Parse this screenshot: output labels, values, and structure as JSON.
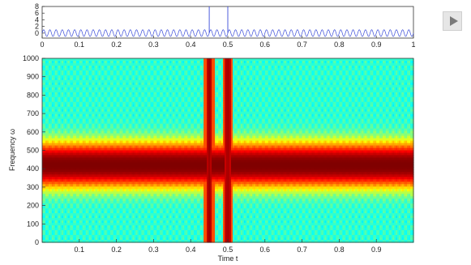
{
  "controls": {
    "play_icon": "play-icon"
  },
  "chart_data": [
    {
      "type": "line",
      "panel": "signal",
      "title": "",
      "xlabel": "",
      "ylabel": "",
      "xlim": [
        0,
        1
      ],
      "ylim": [
        -1.5,
        8
      ],
      "yticks": [
        0,
        2,
        4,
        6,
        8
      ],
      "ytick_labels": [
        "0",
        "2",
        "4",
        "6",
        "8"
      ],
      "xticks": [
        0,
        0.1,
        0.2,
        0.3,
        0.4,
        0.5,
        0.6,
        0.7,
        0.8,
        0.9,
        1
      ],
      "xtick_labels": [
        "0",
        "0.1",
        "0.2",
        "0.3",
        "0.4",
        "0.5",
        "0.6",
        "0.7",
        "0.8",
        "0.9",
        "1"
      ],
      "line_color": "#3a4bd8",
      "baseline_frequency_cycles": 60,
      "baseline_amplitude": 1,
      "spikes": [
        {
          "t": 0.45,
          "value": 8
        },
        {
          "t": 0.5,
          "value": 8
        }
      ]
    },
    {
      "type": "heatmap",
      "panel": "spectrogram",
      "title": "",
      "xlabel": "Time t",
      "ylabel": "Frequency ω",
      "xlim": [
        0,
        1
      ],
      "ylim": [
        0,
        1000
      ],
      "xticks": [
        0.1,
        0.2,
        0.3,
        0.4,
        0.5,
        0.6,
        0.7,
        0.8,
        0.9
      ],
      "xtick_labels": [
        "0.1",
        "0.2",
        "0.3",
        "0.4",
        "0.5",
        "0.6",
        "0.7",
        "0.8",
        "0.9"
      ],
      "yticks": [
        0,
        100,
        200,
        300,
        400,
        500,
        600,
        700,
        800,
        900,
        1000
      ],
      "ytick_labels": [
        "0",
        "100",
        "200",
        "300",
        "400",
        "500",
        "600",
        "700",
        "800",
        "900",
        "1000"
      ],
      "colormap": "jet",
      "dominant_frequency": 420,
      "band_halfwidth": 130,
      "impulse_times": [
        0.45,
        0.5
      ],
      "impulse_halfwidth": 0.008,
      "time_ripple_cycles": 60
    }
  ]
}
